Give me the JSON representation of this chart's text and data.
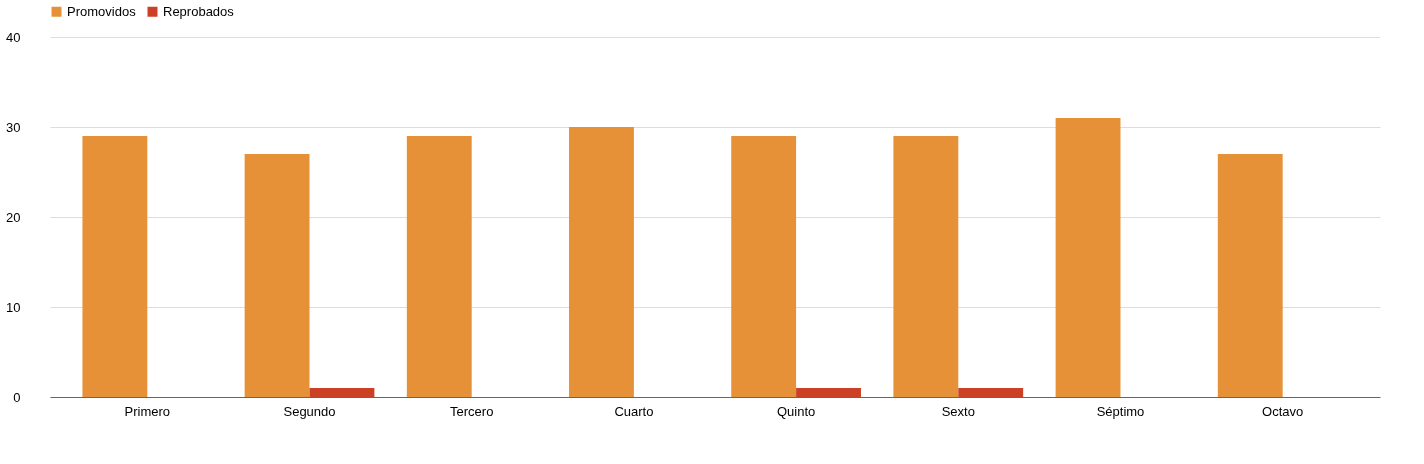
{
  "chart_data": {
    "type": "bar",
    "categories": [
      "Primero",
      "Segundo",
      "Tercero",
      "Cuarto",
      "Quinto",
      "Sexto",
      "Séptimo",
      "Octavo"
    ],
    "series": [
      {
        "name": "Promovidos",
        "color": "#e69138",
        "values": [
          29,
          27,
          29,
          30,
          29,
          29,
          31,
          27
        ]
      },
      {
        "name": "Reprobados",
        "color": "#cc4125",
        "values": [
          0,
          1,
          0,
          0,
          1,
          1,
          0,
          0
        ]
      }
    ],
    "ylim": [
      0,
      40
    ],
    "yticks": [
      0,
      10,
      20,
      30,
      40
    ],
    "grid": "y",
    "legend": "top"
  }
}
